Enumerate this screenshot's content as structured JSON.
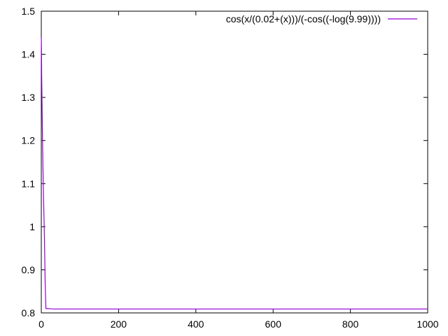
{
  "chart_data": {
    "type": "line",
    "title": "",
    "xlabel": "",
    "ylabel": "",
    "xlim": [
      0,
      1000
    ],
    "ylim": [
      0.8,
      1.5
    ],
    "x_ticks": [
      0,
      200,
      400,
      600,
      800,
      1000
    ],
    "y_ticks": [
      0.8,
      0.9,
      1.0,
      1.1,
      1.2,
      1.3,
      1.4,
      1.5
    ],
    "x_tick_labels": [
      "0",
      "200",
      "400",
      "600",
      "800",
      "1000"
    ],
    "y_tick_labels": [
      "0.8",
      "0.9",
      "1",
      "1.1",
      "1.2",
      "1.3",
      "1.4",
      "1.5"
    ],
    "grid": false,
    "legend_position": "top-right",
    "series": [
      {
        "name": "cos(x/(0.02+(x)))/(-cos((-log(9.99))))",
        "color": "#9400d3",
        "x": [
          0,
          0.5,
          1,
          2,
          3,
          5,
          8,
          10,
          12,
          15,
          20,
          30,
          50,
          100,
          200,
          400,
          600,
          800,
          1000
        ],
        "y": [
          1.44,
          1.41,
          1.35,
          1.28,
          1.21,
          1.1,
          0.98,
          0.87,
          0.81,
          0.81,
          0.81,
          0.809,
          0.809,
          0.809,
          0.809,
          0.809,
          0.809,
          0.809,
          0.809
        ]
      }
    ]
  }
}
